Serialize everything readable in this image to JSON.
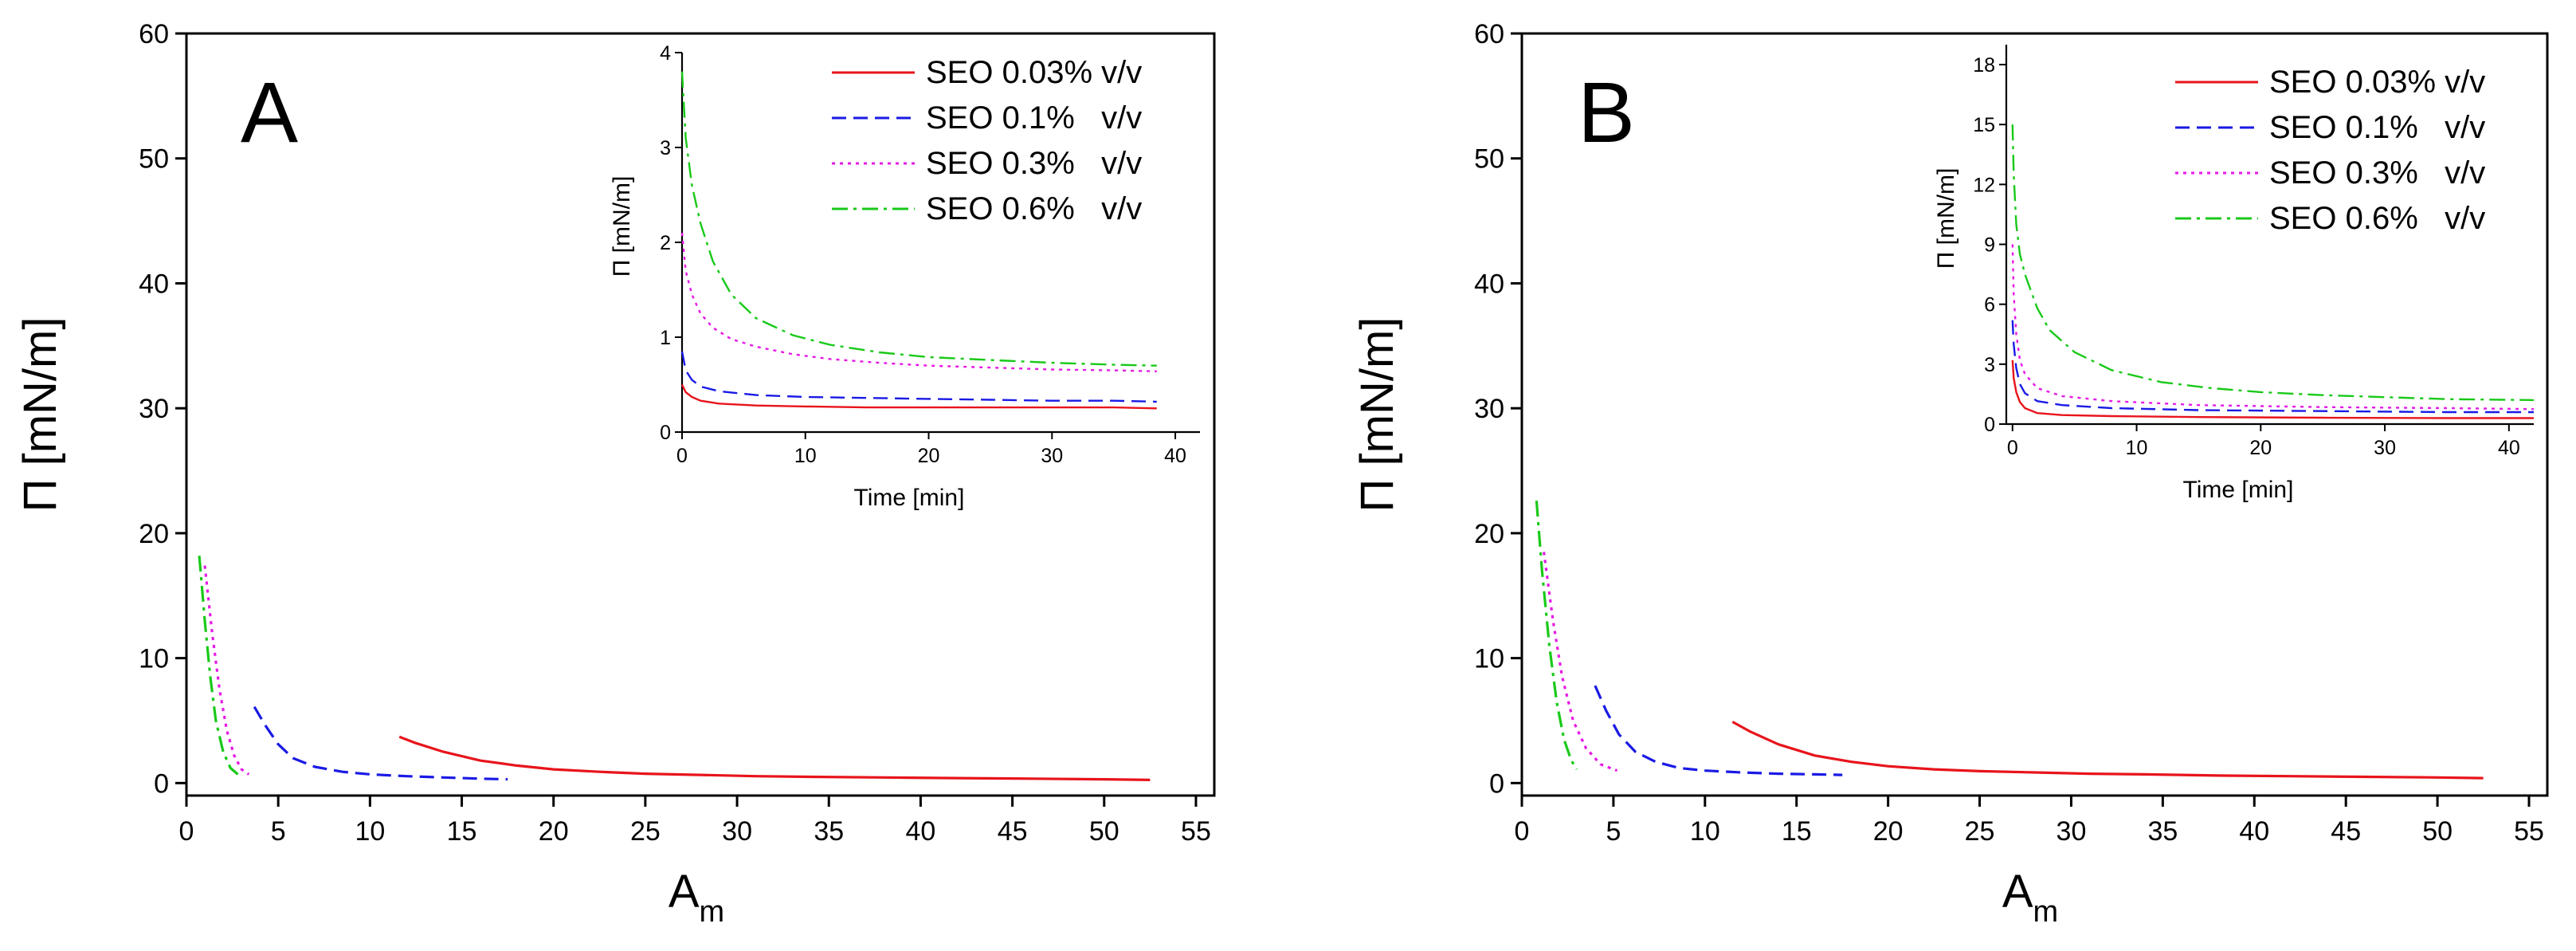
{
  "chart_data": [
    {
      "id": "A",
      "type": "line",
      "panel_label": "A",
      "xlabel_main": "A",
      "xlabel_sub": "m",
      "ylabel": "Π [mN/m]",
      "xlim": [
        0,
        56
      ],
      "ylim": [
        -1,
        60
      ],
      "xticks": [
        "0",
        "5",
        "10",
        "15",
        "20",
        "25",
        "30",
        "35",
        "40",
        "45",
        "50",
        "55"
      ],
      "yticks": [
        "0",
        "10",
        "20",
        "30",
        "40",
        "50",
        "60"
      ],
      "series": [
        {
          "name": "SEO 0.03% v/v",
          "color": "#e8141b",
          "dash": "solid",
          "x": [
            11.6,
            12.5,
            14,
            16,
            18,
            20,
            22.5,
            25,
            28,
            31,
            34,
            38,
            42,
            46,
            50,
            52.5
          ],
          "y": [
            3.7,
            3.2,
            2.5,
            1.8,
            1.4,
            1.1,
            0.9,
            0.75,
            0.65,
            0.55,
            0.5,
            0.45,
            0.4,
            0.35,
            0.3,
            0.25
          ]
        },
        {
          "name": "SEO 0.1%   v/v",
          "color": "#1a1ae6",
          "dash": "dashed",
          "x": [
            3.7,
            4.3,
            5,
            5.8,
            7,
            8.5,
            10,
            12,
            14,
            16,
            17.5
          ],
          "y": [
            6.1,
            4.6,
            3.1,
            2.0,
            1.3,
            0.9,
            0.7,
            0.55,
            0.45,
            0.35,
            0.3
          ]
        },
        {
          "name": "SEO 0.3%   v/v",
          "color": "#e619e6",
          "dash": "dotted",
          "x": [
            1.0,
            1.4,
            1.8,
            2.2,
            2.6,
            3.0,
            3.4
          ],
          "y": [
            17.4,
            12.0,
            7.5,
            4.2,
            2.2,
            1.1,
            0.7
          ]
        },
        {
          "name": "SEO 0.6%   v/v",
          "color": "#19c919",
          "dash": "dashdot",
          "x": [
            0.7,
            1.0,
            1.3,
            1.6,
            2.0,
            2.4,
            2.8
          ],
          "y": [
            18.2,
            13.0,
            8.5,
            5.0,
            2.5,
            1.2,
            0.7
          ]
        }
      ],
      "inset": {
        "xlabel": "Time [min]",
        "ylabel": "Π [mN/m]",
        "xlim": [
          0,
          42
        ],
        "ylim": [
          0,
          4
        ],
        "xticks": [
          "0",
          "10",
          "20",
          "30",
          "40"
        ],
        "yticks": [
          "0",
          "1",
          "2",
          "3",
          "4"
        ],
        "series": [
          {
            "name": "SEO 0.03% v/v",
            "color": "#e8141b",
            "dash": "solid",
            "x": [
              0,
              0.3,
              0.8,
              1.5,
              3,
              6,
              10,
              15,
              20,
              25,
              30,
              35,
              38.5
            ],
            "y": [
              0.5,
              0.42,
              0.37,
              0.33,
              0.3,
              0.28,
              0.27,
              0.26,
              0.26,
              0.26,
              0.26,
              0.26,
              0.25
            ]
          },
          {
            "name": "SEO 0.1%   v/v",
            "color": "#1a1ae6",
            "dash": "dashed",
            "x": [
              0,
              0.3,
              0.8,
              1.5,
              3,
              6,
              10,
              15,
              20,
              25,
              30,
              35,
              38.5
            ],
            "y": [
              0.85,
              0.65,
              0.55,
              0.48,
              0.43,
              0.39,
              0.37,
              0.36,
              0.35,
              0.34,
              0.33,
              0.33,
              0.32
            ]
          },
          {
            "name": "SEO 0.3%   v/v",
            "color": "#e619e6",
            "dash": "dotted",
            "x": [
              0,
              0.3,
              0.8,
              1.5,
              2.5,
              4,
              6,
              9,
              12,
              16,
              20,
              25,
              30,
              35,
              38.5
            ],
            "y": [
              2.1,
              1.7,
              1.45,
              1.25,
              1.1,
              0.98,
              0.9,
              0.82,
              0.77,
              0.73,
              0.7,
              0.68,
              0.66,
              0.65,
              0.64
            ]
          },
          {
            "name": "SEO 0.6%   v/v",
            "color": "#19c919",
            "dash": "dashdot",
            "x": [
              0,
              0.3,
              0.8,
              1.5,
              2.5,
              4,
              6,
              9,
              12,
              16,
              20,
              25,
              30,
              35,
              38.5
            ],
            "y": [
              3.8,
              3.1,
              2.6,
              2.2,
              1.8,
              1.45,
              1.2,
              1.02,
              0.92,
              0.84,
              0.79,
              0.76,
              0.73,
              0.71,
              0.7
            ]
          }
        ]
      }
    },
    {
      "id": "B",
      "type": "line",
      "panel_label": "B",
      "xlabel_main": "A",
      "xlabel_sub": "m",
      "ylabel": "Π [mN/m]",
      "xlim": [
        0,
        56
      ],
      "ylim": [
        -1,
        60
      ],
      "xticks": [
        "0",
        "5",
        "10",
        "15",
        "20",
        "25",
        "30",
        "35",
        "40",
        "45",
        "50",
        "55"
      ],
      "yticks": [
        "0",
        "10",
        "20",
        "30",
        "40",
        "50",
        "60"
      ],
      "series": [
        {
          "name": "SEO 0.03% v/v",
          "color": "#e8141b",
          "dash": "solid",
          "x": [
            11.5,
            12.5,
            14,
            16,
            18,
            20,
            22.5,
            25,
            28,
            31,
            34,
            38,
            42,
            46,
            50,
            52.5
          ],
          "y": [
            4.9,
            4.1,
            3.1,
            2.2,
            1.7,
            1.35,
            1.1,
            0.95,
            0.85,
            0.75,
            0.7,
            0.6,
            0.55,
            0.5,
            0.45,
            0.4
          ]
        },
        {
          "name": "SEO 0.1%   v/v",
          "color": "#1a1ae6",
          "dash": "dashed",
          "x": [
            4.0,
            4.6,
            5.3,
            6.2,
            7.3,
            8.6,
            10,
            12,
            14,
            16,
            17.5
          ],
          "y": [
            7.8,
            5.8,
            3.9,
            2.5,
            1.7,
            1.2,
            1.0,
            0.85,
            0.75,
            0.7,
            0.65
          ]
        },
        {
          "name": "SEO 0.3%   v/v",
          "color": "#e619e6",
          "dash": "dotted",
          "x": [
            1.2,
            1.7,
            2.2,
            2.8,
            3.5,
            4.3,
            5.2
          ],
          "y": [
            18.5,
            13.0,
            8.5,
            5.0,
            2.8,
            1.5,
            1.0
          ]
        },
        {
          "name": "SEO 0.6%   v/v",
          "color": "#19c919",
          "dash": "dashdot",
          "x": [
            0.8,
            1.1,
            1.5,
            1.9,
            2.3,
            2.7,
            3.0
          ],
          "y": [
            22.6,
            17.0,
            11.0,
            6.5,
            3.5,
            1.8,
            1.1
          ]
        }
      ],
      "inset": {
        "xlabel": "Time [min]",
        "ylabel": "Π [mN/m]",
        "xlim": [
          -0.5,
          42
        ],
        "ylim": [
          0,
          19
        ],
        "xticks": [
          "0",
          "10",
          "20",
          "30",
          "40"
        ],
        "yticks": [
          "0",
          "3",
          "6",
          "9",
          "12",
          "15",
          "18"
        ],
        "series": [
          {
            "name": "SEO 0.03% v/v",
            "color": "#e8141b",
            "dash": "solid",
            "x": [
              0,
              0.1,
              0.3,
              0.6,
              1,
              2,
              4,
              8,
              15,
              25,
              35,
              42
            ],
            "y": [
              3.2,
              2.3,
              1.6,
              1.1,
              0.8,
              0.55,
              0.45,
              0.4,
              0.35,
              0.32,
              0.3,
              0.3
            ]
          },
          {
            "name": "SEO 0.1%   v/v",
            "color": "#1a1ae6",
            "dash": "dashed",
            "x": [
              0,
              0.1,
              0.3,
              0.6,
              1,
              2,
              4,
              8,
              15,
              25,
              35,
              42
            ],
            "y": [
              5.2,
              4.0,
              2.8,
              2.0,
              1.55,
              1.15,
              0.95,
              0.8,
              0.7,
              0.65,
              0.6,
              0.6
            ]
          },
          {
            "name": "SEO 0.3%   v/v",
            "color": "#e619e6",
            "dash": "dotted",
            "x": [
              0,
              0.1,
              0.3,
              0.6,
              1,
              2,
              4,
              8,
              15,
              25,
              35,
              42
            ],
            "y": [
              9.0,
              6.5,
              4.5,
              3.2,
              2.5,
              1.8,
              1.4,
              1.15,
              0.95,
              0.85,
              0.8,
              0.75
            ]
          },
          {
            "name": "SEO 0.6%   v/v",
            "color": "#19c919",
            "dash": "dashdot",
            "x": [
              0,
              0.1,
              0.3,
              0.6,
              1,
              2,
              3,
              5,
              8,
              12,
              16,
              20,
              25,
              30,
              35,
              42
            ],
            "y": [
              15.0,
              12.5,
              10.0,
              8.5,
              7.5,
              5.8,
              4.7,
              3.6,
              2.7,
              2.1,
              1.8,
              1.6,
              1.45,
              1.35,
              1.25,
              1.2
            ]
          }
        ]
      }
    }
  ]
}
